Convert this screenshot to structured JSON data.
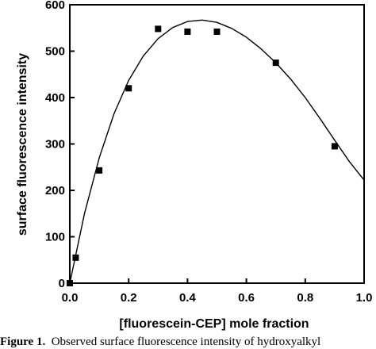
{
  "chart_data": {
    "type": "scatter",
    "xlabel": "[fluorescein-CEP]  mole  fraction",
    "ylabel": "surface  fluorescence  intensity",
    "xlim": [
      0.0,
      1.0
    ],
    "ylim": [
      0,
      600
    ],
    "xticks": [
      "0.0",
      "0.2",
      "0.4",
      "0.6",
      "0.8",
      "1.0"
    ],
    "yticks": [
      "0",
      "100",
      "200",
      "300",
      "400",
      "500",
      "600"
    ],
    "grid": false,
    "points": [
      {
        "x": 0.0,
        "y": 0
      },
      {
        "x": 0.02,
        "y": 55
      },
      {
        "x": 0.1,
        "y": 243
      },
      {
        "x": 0.2,
        "y": 420
      },
      {
        "x": 0.3,
        "y": 548
      },
      {
        "x": 0.4,
        "y": 542
      },
      {
        "x": 0.5,
        "y": 542
      },
      {
        "x": 0.7,
        "y": 475
      },
      {
        "x": 0.9,
        "y": 295
      }
    ],
    "fit_curve": [
      {
        "x": 0.0,
        "y": 0
      },
      {
        "x": 0.05,
        "y": 150
      },
      {
        "x": 0.1,
        "y": 270
      },
      {
        "x": 0.15,
        "y": 365
      },
      {
        "x": 0.2,
        "y": 437
      },
      {
        "x": 0.25,
        "y": 490
      },
      {
        "x": 0.3,
        "y": 527
      },
      {
        "x": 0.35,
        "y": 551
      },
      {
        "x": 0.4,
        "y": 564
      },
      {
        "x": 0.45,
        "y": 567
      },
      {
        "x": 0.5,
        "y": 562
      },
      {
        "x": 0.55,
        "y": 549
      },
      {
        "x": 0.6,
        "y": 530
      },
      {
        "x": 0.65,
        "y": 505
      },
      {
        "x": 0.7,
        "y": 475
      },
      {
        "x": 0.75,
        "y": 440
      },
      {
        "x": 0.8,
        "y": 400
      },
      {
        "x": 0.85,
        "y": 355
      },
      {
        "x": 0.9,
        "y": 308
      },
      {
        "x": 0.95,
        "y": 262
      },
      {
        "x": 1.0,
        "y": 222
      }
    ]
  },
  "caption": {
    "label": "Figure 1.",
    "text": "Observed surface fluorescence intensity of hydroxyalkyl"
  }
}
